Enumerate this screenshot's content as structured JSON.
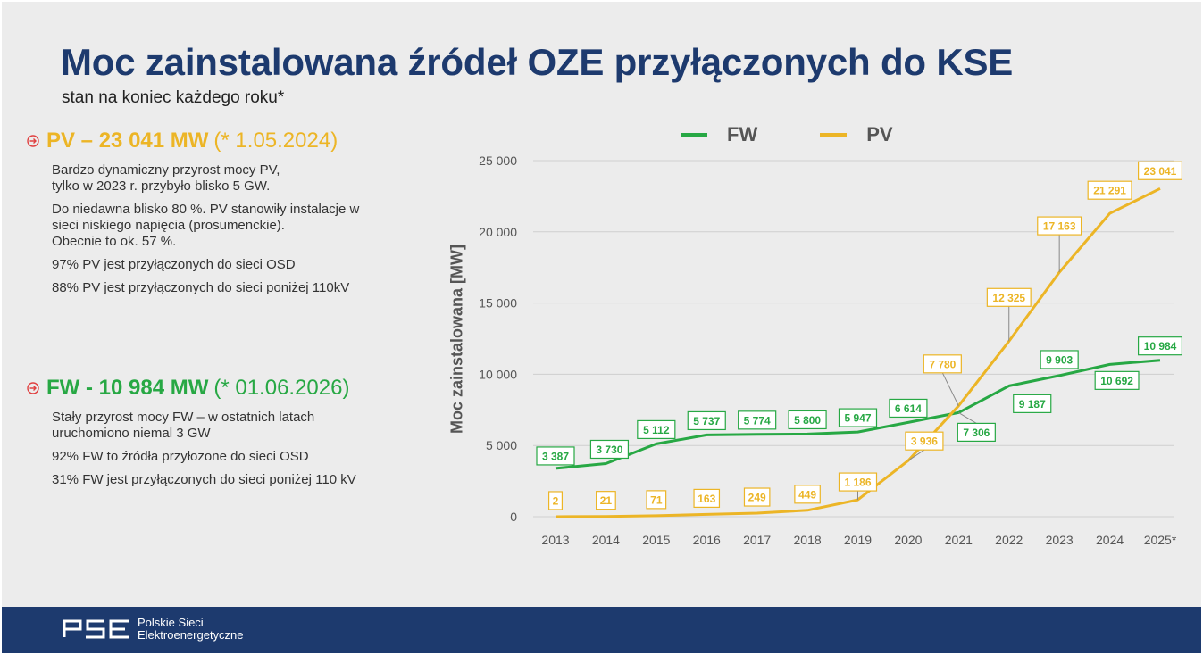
{
  "header": {
    "title": "Moc zainstalowana źródeł OZE przyłączonych do KSE",
    "subtitle": "stan na koniec każdego roku*"
  },
  "pv_section": {
    "head_bold": "PV – 23 041 MW",
    "head_note": "(* 1.05.2024)",
    "bullets": [
      "Bardzo dynamiczny przyrost mocy PV,\ntylko w 2023 r. przybyło blisko 5 GW.",
      "Do niedawna blisko 80 %. PV stanowiły instalacje w\nsieci niskiego napięcia (prosumenckie).\nObecnie to ok. 57 %.",
      "97% PV jest przyłączonych do sieci OSD",
      "88% PV jest przyłączonych do sieci poniżej 110kV"
    ]
  },
  "fw_section": {
    "head_bold": "FW - 10 984 MW",
    "head_note": "(* 01.06.2026)",
    "bullets": [
      "Stały przyrost mocy FW – w ostatnich latach\nuruchomiono niemal 3 GW",
      "92% FW to źródła przyłozone do sieci OSD",
      "31% FW jest przyłączonych do sieci poniżej 110 kV"
    ]
  },
  "footer": {
    "company": "Polskie Sieci\nElektroenergetyczne"
  },
  "colors": {
    "title": "#1d3a6e",
    "fw": "#27a844",
    "pv": "#ecb526",
    "footer": "#1d3a6e"
  },
  "chart_data": {
    "type": "line",
    "title": "",
    "xlabel": "",
    "ylabel": "Moc zainstalowana [MW]",
    "categories": [
      "2013",
      "2014",
      "2015",
      "2016",
      "2017",
      "2018",
      "2019",
      "2020",
      "2021",
      "2022",
      "2023",
      "2024",
      "2025*"
    ],
    "ylim": [
      0,
      25000
    ],
    "yticks": [
      0,
      5000,
      10000,
      15000,
      20000,
      25000
    ],
    "ytick_labels": [
      "0",
      "5 000",
      "10 000",
      "15 000",
      "20 000",
      "25 000"
    ],
    "grid": true,
    "legend": "top",
    "series": [
      {
        "name": "FW",
        "color": "#27a844",
        "values": [
          3387,
          3730,
          5112,
          5737,
          5774,
          5800,
          5947,
          6614,
          7306,
          9187,
          9903,
          10692,
          10984
        ],
        "labels": [
          "3 387",
          "3 730",
          "5 112",
          "5 737",
          "5 774",
          "5 800",
          "5 947",
          "6 614",
          "7 306",
          "9 187",
          "9 903",
          "10 692",
          "10 984"
        ]
      },
      {
        "name": "PV",
        "color": "#ecb526",
        "values": [
          2,
          21,
          71,
          163,
          249,
          449,
          1186,
          3936,
          7780,
          12325,
          17163,
          21291,
          23041
        ],
        "labels": [
          "2",
          "21",
          "71",
          "163",
          "249",
          "449",
          "1 186",
          "3 936",
          "7 780",
          "12 325",
          "17 163",
          "21 291",
          "23 041"
        ]
      }
    ]
  }
}
